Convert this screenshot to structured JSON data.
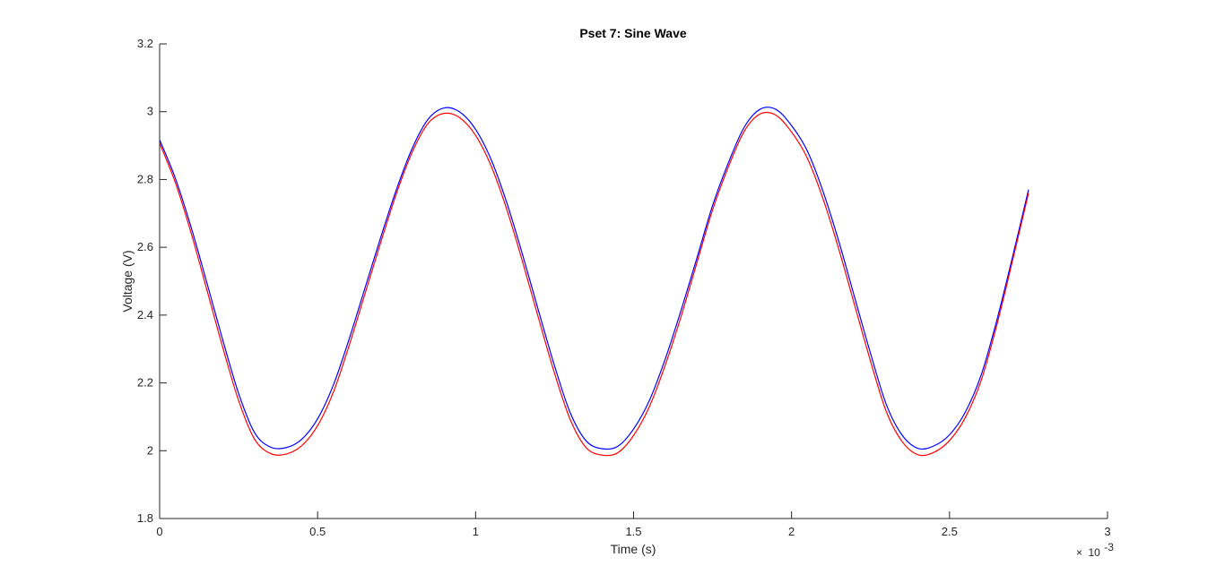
{
  "chart_data": {
    "type": "line",
    "title": "Pset 7: Sine Wave",
    "xlabel": "Time (s)",
    "ylabel": "Voltage (V)",
    "xlim": [
      0,
      0.003
    ],
    "ylim": [
      1.8,
      3.2
    ],
    "x_ticks": [
      0,
      0.0005,
      0.001,
      0.0015,
      0.002,
      0.0025,
      0.003
    ],
    "x_tick_labels": [
      "0",
      "0.5",
      "1",
      "1.5",
      "2",
      "2.5",
      "3"
    ],
    "x_exponent_multiplier": "×",
    "x_exponent_base": "10",
    "x_exponent_power": "-3",
    "y_ticks": [
      1.8,
      2.0,
      2.2,
      2.4,
      2.6,
      2.8,
      3.0,
      3.2
    ],
    "y_tick_labels": [
      "1.8",
      "2",
      "2.2",
      "2.4",
      "2.6",
      "2.8",
      "3",
      "3.2"
    ],
    "grid": false,
    "series": [
      {
        "color": "#0000ff",
        "x": [
          0,
          5e-05,
          0.0001,
          0.00015,
          0.0002,
          0.00025,
          0.0003,
          0.00035,
          0.0004,
          0.00045,
          0.0005,
          0.00055,
          0.0006,
          0.00065,
          0.0007,
          0.00075,
          0.0008,
          0.00085,
          0.0009,
          0.00095,
          0.001,
          0.00105,
          0.0011,
          0.00115,
          0.0012,
          0.00125,
          0.0013,
          0.00135,
          0.0014,
          0.00145,
          0.0015,
          0.00155,
          0.0016,
          0.00165,
          0.0017,
          0.00175,
          0.0018,
          0.00185,
          0.0019,
          0.00195,
          0.002,
          0.00205,
          0.0021,
          0.00215,
          0.0022,
          0.00225,
          0.0023,
          0.00235,
          0.0024,
          0.00245,
          0.0025,
          0.00255,
          0.0026,
          0.00265,
          0.0027,
          0.00275
        ],
        "y": [
          2.917,
          2.803,
          2.658,
          2.494,
          2.326,
          2.169,
          2.054,
          2.011,
          2.009,
          2.034,
          2.094,
          2.194,
          2.33,
          2.48,
          2.63,
          2.772,
          2.893,
          2.978,
          3.011,
          2.999,
          2.948,
          2.857,
          2.728,
          2.574,
          2.41,
          2.25,
          2.111,
          2.029,
          2.006,
          2.013,
          2.064,
          2.148,
          2.27,
          2.413,
          2.567,
          2.723,
          2.849,
          2.954,
          3.007,
          3.007,
          2.959,
          2.884,
          2.764,
          2.616,
          2.451,
          2.287,
          2.136,
          2.046,
          2.007,
          2.014,
          2.047,
          2.114,
          2.223,
          2.386,
          2.574,
          2.77
        ]
      },
      {
        "color": "#ff0000",
        "x": [
          0,
          5e-05,
          0.0001,
          0.00015,
          0.0002,
          0.00025,
          0.0003,
          0.00035,
          0.0004,
          0.00045,
          0.0005,
          0.00055,
          0.0006,
          0.00065,
          0.0007,
          0.00075,
          0.0008,
          0.00085,
          0.0009,
          0.00095,
          0.001,
          0.00105,
          0.0011,
          0.00115,
          0.0012,
          0.00125,
          0.0013,
          0.00135,
          0.0014,
          0.00145,
          0.0015,
          0.00155,
          0.0016,
          0.00165,
          0.0017,
          0.00175,
          0.0018,
          0.00185,
          0.0019,
          0.00195,
          0.002,
          0.00205,
          0.0021,
          0.00215,
          0.0022,
          0.00225,
          0.0023,
          0.00235,
          0.0024,
          0.00245,
          0.0025,
          0.00255,
          0.0026,
          0.00265,
          0.0027,
          0.00275
        ],
        "y": [
          2.907,
          2.79,
          2.641,
          2.473,
          2.304,
          2.148,
          2.035,
          1.992,
          1.99,
          2.015,
          2.074,
          2.173,
          2.311,
          2.463,
          2.615,
          2.76,
          2.882,
          2.966,
          2.995,
          2.982,
          2.93,
          2.838,
          2.708,
          2.553,
          2.388,
          2.228,
          2.091,
          2.009,
          1.987,
          1.994,
          2.045,
          2.13,
          2.252,
          2.395,
          2.553,
          2.71,
          2.837,
          2.942,
          2.993,
          2.99,
          2.94,
          2.863,
          2.742,
          2.593,
          2.428,
          2.264,
          2.115,
          2.027,
          1.988,
          1.995,
          2.03,
          2.098,
          2.207,
          2.372,
          2.563,
          2.76
        ]
      }
    ]
  }
}
